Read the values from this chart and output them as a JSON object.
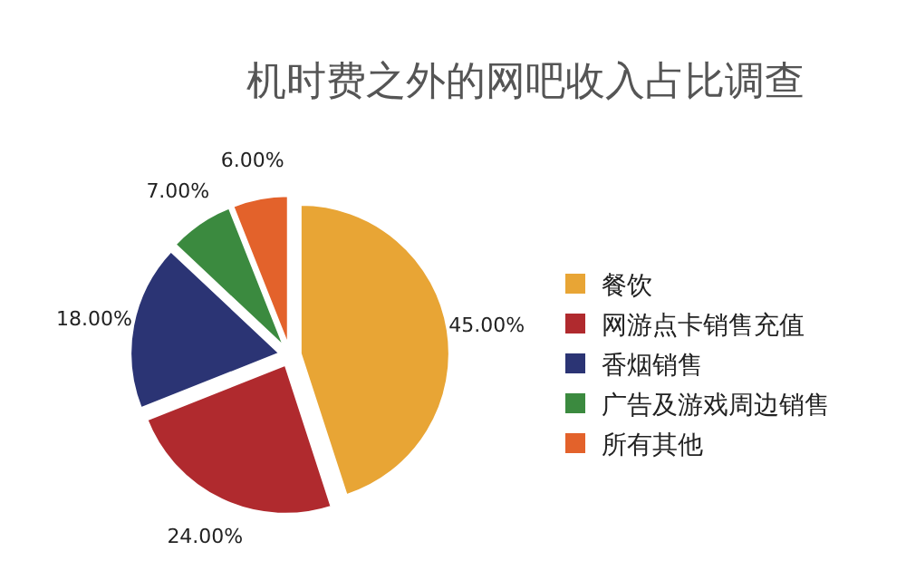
{
  "chart_data": {
    "type": "pie",
    "title": "机时费之外的网吧收入占比调查",
    "categories": [
      "餐饮",
      "网游点卡销售充值",
      "香烟销售",
      "广告及游戏周边销售",
      "所有其他"
    ],
    "values": [
      45,
      24,
      18,
      7,
      6
    ],
    "colors": [
      "#e8a535",
      "#b02a2e",
      "#2b3474",
      "#3b8a3f",
      "#e3622b"
    ],
    "value_labels": [
      "45.00%",
      "24.00%",
      "18.00%",
      "7.00%",
      "6.00%"
    ],
    "legend": "right"
  }
}
